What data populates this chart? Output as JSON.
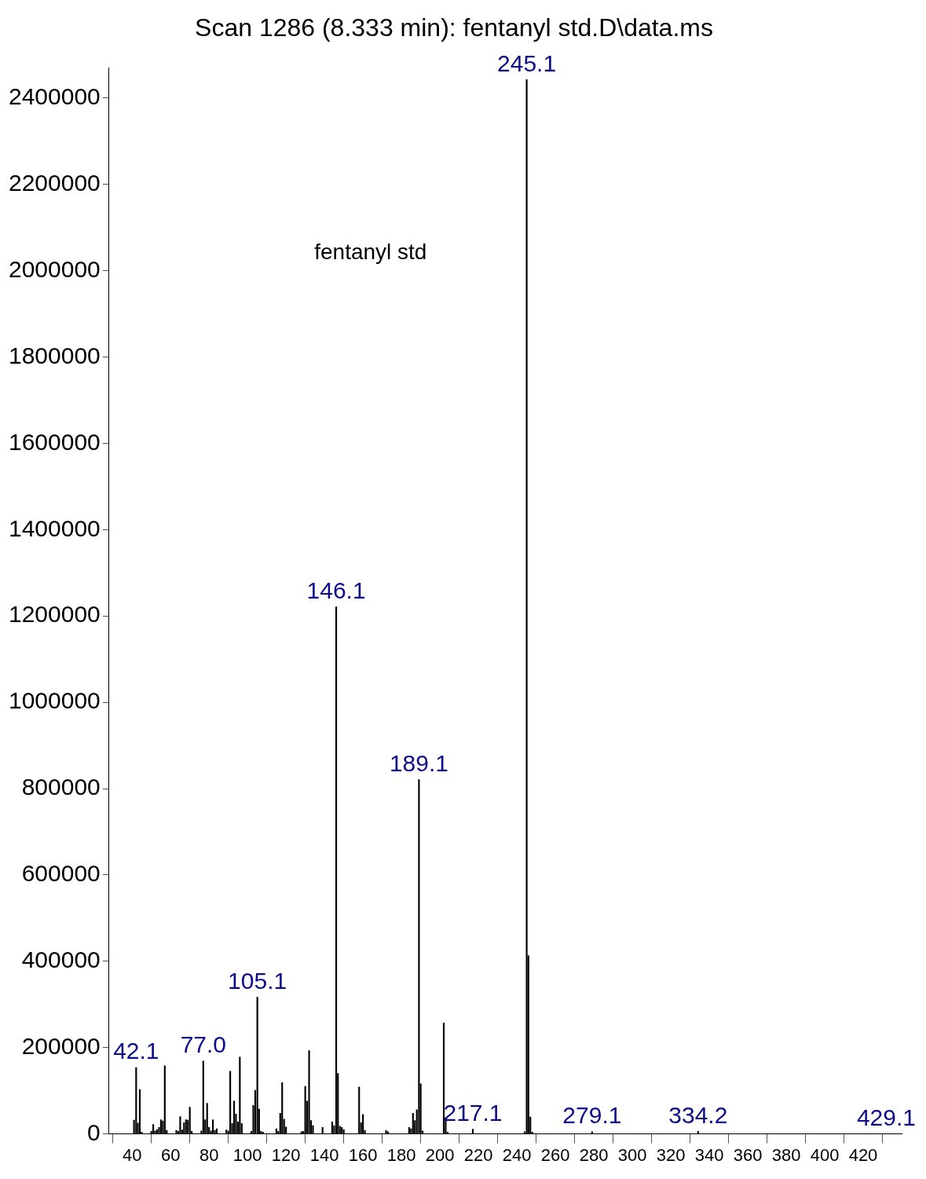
{
  "chart_data": {
    "type": "bar",
    "title": "Scan 1286 (8.333 min): fentanyl std.D\\data.ms",
    "annotations": [
      "fentanyl std",
      {
        "text": "42.1",
        "x": 42.1,
        "y": 154000
      },
      {
        "text": "77.0",
        "x": 77.0,
        "y": 169000
      },
      {
        "text": "105.1",
        "x": 105.1,
        "y": 317000
      },
      {
        "text": "146.1",
        "x": 146.1,
        "y": 1221000
      },
      {
        "text": "189.1",
        "x": 189.1,
        "y": 821000
      },
      {
        "text": "217.1",
        "x": 217.1,
        "y": 11000
      },
      {
        "text": "245.1",
        "x": 245.1,
        "y": 2443000
      },
      {
        "text": "279.1",
        "x": 279.1,
        "y": 5000
      },
      {
        "text": "334.2",
        "x": 334.2,
        "y": 6000
      },
      "429.1"
    ],
    "x": [
      41,
      42.1,
      43,
      44,
      45,
      50,
      51,
      52,
      53,
      54,
      55,
      56,
      57,
      58,
      63,
      64,
      65,
      66,
      67,
      68,
      69,
      70,
      71,
      76,
      77.0,
      78,
      79,
      80,
      81,
      82,
      83,
      84,
      89,
      90,
      91,
      92,
      93,
      94,
      95,
      96,
      97,
      102,
      103,
      104,
      105.1,
      106,
      107,
      108,
      115,
      116,
      117,
      118,
      119,
      120,
      128,
      129,
      130,
      131,
      132,
      133,
      134,
      139,
      144,
      145,
      146.1,
      147,
      148,
      149,
      150,
      158,
      159,
      160,
      161,
      172,
      173,
      184,
      185,
      186,
      187,
      188,
      189.1,
      190,
      191,
      202,
      203,
      204,
      217.1,
      244,
      245.1,
      246,
      247,
      248,
      279.1,
      334.2
    ],
    "values": [
      32000,
      154000,
      25000,
      103000,
      4000,
      6000,
      22000,
      7000,
      10000,
      15000,
      33000,
      30000,
      158000,
      8000,
      8000,
      6000,
      40000,
      9000,
      26000,
      33000,
      32000,
      62000,
      6000,
      7000,
      169000,
      33000,
      71000,
      15000,
      7000,
      33000,
      8000,
      12000,
      9000,
      7000,
      145000,
      24000,
      76000,
      46000,
      28000,
      178000,
      24000,
      6000,
      66000,
      101000,
      317000,
      58000,
      6000,
      4000,
      12000,
      6000,
      48000,
      119000,
      34000,
      16000,
      5000,
      6000,
      110000,
      76000,
      193000,
      31000,
      19000,
      15000,
      28000,
      19000,
      1221000,
      140000,
      18000,
      15000,
      10000,
      109000,
      26000,
      45000,
      8000,
      8000,
      5000,
      15000,
      12000,
      48000,
      31000,
      56000,
      821000,
      116000,
      7000,
      257000,
      38000,
      4000,
      11000,
      5000,
      2443000,
      413000,
      39000,
      4000,
      5000,
      6000
    ],
    "color": "#000000",
    "xlim": [
      28,
      440
    ],
    "xticks": [
      40,
      60,
      80,
      100,
      120,
      140,
      160,
      180,
      200,
      220,
      240,
      260,
      280,
      300,
      320,
      340,
      360,
      380,
      400,
      420
    ],
    "ylim": [
      0,
      2470000
    ],
    "yticks": [
      0,
      200000,
      400000,
      600000,
      800000,
      1000000,
      1200000,
      1400000,
      1600000,
      1800000,
      2000000,
      2200000,
      2400000
    ],
    "grid": false,
    "legend": false
  }
}
